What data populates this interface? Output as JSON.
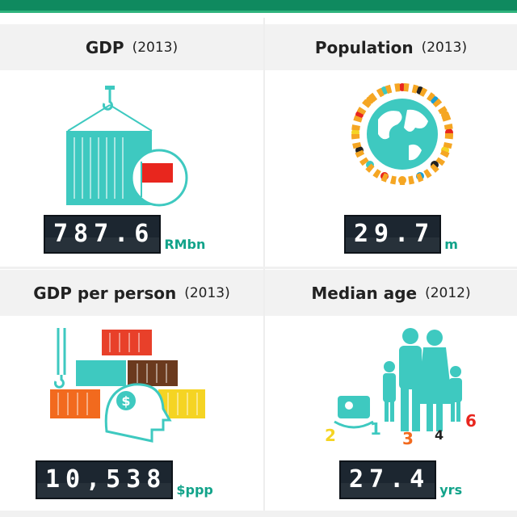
{
  "cards": [
    {
      "title": "GDP",
      "year": "(2013)",
      "value": "787.6",
      "unit": "RMbn"
    },
    {
      "title": "Population",
      "year": "(2013)",
      "value": "29.7",
      "unit": "m"
    },
    {
      "title": "GDP per person",
      "year": "(2013)",
      "value": "10,538",
      "unit": "$ppp"
    },
    {
      "title": "Median age",
      "year": "(2012)",
      "value": "27.4",
      "unit": "yrs"
    }
  ],
  "colors": {
    "top_bar": "#0f8a5f",
    "accent_teal": "#3ec9c0",
    "counter_bg": "#1c2630",
    "unit_text": "#12a38a",
    "flag_red": "#e8261e"
  },
  "icons": [
    "container-crane-flag-icon",
    "globe-people-ring-icon",
    "containers-head-dollar-icon",
    "family-icon"
  ]
}
